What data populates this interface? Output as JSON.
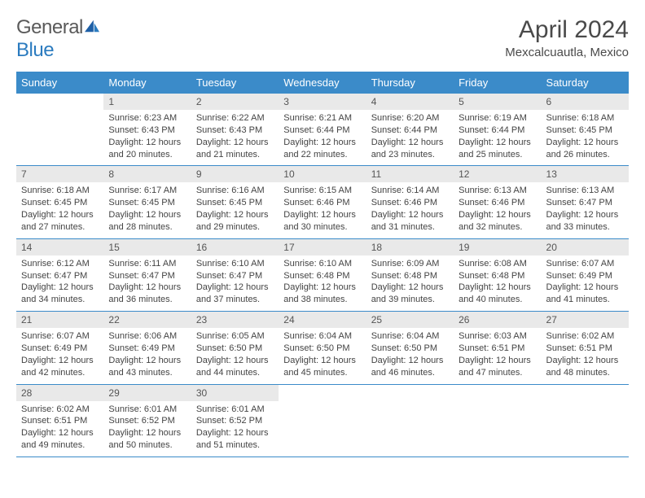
{
  "brand": {
    "part1": "General",
    "part2": "Blue"
  },
  "title": "April 2024",
  "location": "Mexcalcuautla, Mexico",
  "colors": {
    "header_bg": "#3b8bc9",
    "header_fg": "#ffffff",
    "daynum_bg": "#e9e9e9",
    "rule": "#3b8bc9",
    "text": "#444444"
  },
  "day_headers": [
    "Sunday",
    "Monday",
    "Tuesday",
    "Wednesday",
    "Thursday",
    "Friday",
    "Saturday"
  ],
  "weeks": [
    [
      {
        "n": "",
        "sr": "",
        "ss": "",
        "dl": ""
      },
      {
        "n": "1",
        "sr": "Sunrise: 6:23 AM",
        "ss": "Sunset: 6:43 PM",
        "dl": "Daylight: 12 hours and 20 minutes."
      },
      {
        "n": "2",
        "sr": "Sunrise: 6:22 AM",
        "ss": "Sunset: 6:43 PM",
        "dl": "Daylight: 12 hours and 21 minutes."
      },
      {
        "n": "3",
        "sr": "Sunrise: 6:21 AM",
        "ss": "Sunset: 6:44 PM",
        "dl": "Daylight: 12 hours and 22 minutes."
      },
      {
        "n": "4",
        "sr": "Sunrise: 6:20 AM",
        "ss": "Sunset: 6:44 PM",
        "dl": "Daylight: 12 hours and 23 minutes."
      },
      {
        "n": "5",
        "sr": "Sunrise: 6:19 AM",
        "ss": "Sunset: 6:44 PM",
        "dl": "Daylight: 12 hours and 25 minutes."
      },
      {
        "n": "6",
        "sr": "Sunrise: 6:18 AM",
        "ss": "Sunset: 6:45 PM",
        "dl": "Daylight: 12 hours and 26 minutes."
      }
    ],
    [
      {
        "n": "7",
        "sr": "Sunrise: 6:18 AM",
        "ss": "Sunset: 6:45 PM",
        "dl": "Daylight: 12 hours and 27 minutes."
      },
      {
        "n": "8",
        "sr": "Sunrise: 6:17 AM",
        "ss": "Sunset: 6:45 PM",
        "dl": "Daylight: 12 hours and 28 minutes."
      },
      {
        "n": "9",
        "sr": "Sunrise: 6:16 AM",
        "ss": "Sunset: 6:45 PM",
        "dl": "Daylight: 12 hours and 29 minutes."
      },
      {
        "n": "10",
        "sr": "Sunrise: 6:15 AM",
        "ss": "Sunset: 6:46 PM",
        "dl": "Daylight: 12 hours and 30 minutes."
      },
      {
        "n": "11",
        "sr": "Sunrise: 6:14 AM",
        "ss": "Sunset: 6:46 PM",
        "dl": "Daylight: 12 hours and 31 minutes."
      },
      {
        "n": "12",
        "sr": "Sunrise: 6:13 AM",
        "ss": "Sunset: 6:46 PM",
        "dl": "Daylight: 12 hours and 32 minutes."
      },
      {
        "n": "13",
        "sr": "Sunrise: 6:13 AM",
        "ss": "Sunset: 6:47 PM",
        "dl": "Daylight: 12 hours and 33 minutes."
      }
    ],
    [
      {
        "n": "14",
        "sr": "Sunrise: 6:12 AM",
        "ss": "Sunset: 6:47 PM",
        "dl": "Daylight: 12 hours and 34 minutes."
      },
      {
        "n": "15",
        "sr": "Sunrise: 6:11 AM",
        "ss": "Sunset: 6:47 PM",
        "dl": "Daylight: 12 hours and 36 minutes."
      },
      {
        "n": "16",
        "sr": "Sunrise: 6:10 AM",
        "ss": "Sunset: 6:47 PM",
        "dl": "Daylight: 12 hours and 37 minutes."
      },
      {
        "n": "17",
        "sr": "Sunrise: 6:10 AM",
        "ss": "Sunset: 6:48 PM",
        "dl": "Daylight: 12 hours and 38 minutes."
      },
      {
        "n": "18",
        "sr": "Sunrise: 6:09 AM",
        "ss": "Sunset: 6:48 PM",
        "dl": "Daylight: 12 hours and 39 minutes."
      },
      {
        "n": "19",
        "sr": "Sunrise: 6:08 AM",
        "ss": "Sunset: 6:48 PM",
        "dl": "Daylight: 12 hours and 40 minutes."
      },
      {
        "n": "20",
        "sr": "Sunrise: 6:07 AM",
        "ss": "Sunset: 6:49 PM",
        "dl": "Daylight: 12 hours and 41 minutes."
      }
    ],
    [
      {
        "n": "21",
        "sr": "Sunrise: 6:07 AM",
        "ss": "Sunset: 6:49 PM",
        "dl": "Daylight: 12 hours and 42 minutes."
      },
      {
        "n": "22",
        "sr": "Sunrise: 6:06 AM",
        "ss": "Sunset: 6:49 PM",
        "dl": "Daylight: 12 hours and 43 minutes."
      },
      {
        "n": "23",
        "sr": "Sunrise: 6:05 AM",
        "ss": "Sunset: 6:50 PM",
        "dl": "Daylight: 12 hours and 44 minutes."
      },
      {
        "n": "24",
        "sr": "Sunrise: 6:04 AM",
        "ss": "Sunset: 6:50 PM",
        "dl": "Daylight: 12 hours and 45 minutes."
      },
      {
        "n": "25",
        "sr": "Sunrise: 6:04 AM",
        "ss": "Sunset: 6:50 PM",
        "dl": "Daylight: 12 hours and 46 minutes."
      },
      {
        "n": "26",
        "sr": "Sunrise: 6:03 AM",
        "ss": "Sunset: 6:51 PM",
        "dl": "Daylight: 12 hours and 47 minutes."
      },
      {
        "n": "27",
        "sr": "Sunrise: 6:02 AM",
        "ss": "Sunset: 6:51 PM",
        "dl": "Daylight: 12 hours and 48 minutes."
      }
    ],
    [
      {
        "n": "28",
        "sr": "Sunrise: 6:02 AM",
        "ss": "Sunset: 6:51 PM",
        "dl": "Daylight: 12 hours and 49 minutes."
      },
      {
        "n": "29",
        "sr": "Sunrise: 6:01 AM",
        "ss": "Sunset: 6:52 PM",
        "dl": "Daylight: 12 hours and 50 minutes."
      },
      {
        "n": "30",
        "sr": "Sunrise: 6:01 AM",
        "ss": "Sunset: 6:52 PM",
        "dl": "Daylight: 12 hours and 51 minutes."
      },
      {
        "n": "",
        "sr": "",
        "ss": "",
        "dl": ""
      },
      {
        "n": "",
        "sr": "",
        "ss": "",
        "dl": ""
      },
      {
        "n": "",
        "sr": "",
        "ss": "",
        "dl": ""
      },
      {
        "n": "",
        "sr": "",
        "ss": "",
        "dl": ""
      }
    ]
  ]
}
